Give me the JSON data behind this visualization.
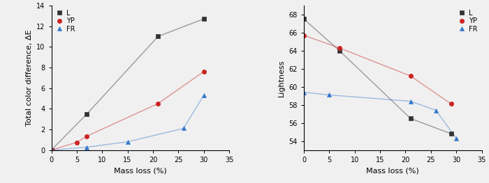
{
  "left": {
    "xlabel": "Mass loss (%)",
    "ylabel": "Total color difference, ΔE",
    "xlim": [
      0,
      35
    ],
    "ylim": [
      0,
      14
    ],
    "xticks": [
      0,
      5,
      10,
      15,
      20,
      25,
      30,
      35
    ],
    "yticks": [
      0,
      2,
      4,
      6,
      8,
      10,
      12,
      14
    ],
    "series": {
      "L": {
        "x": [
          0,
          7,
          21,
          30
        ],
        "y": [
          0,
          3.5,
          11.0,
          12.7
        ],
        "color": "#333333",
        "marker": "s",
        "label": "L"
      },
      "YP": {
        "x": [
          0,
          5,
          7,
          21,
          30
        ],
        "y": [
          0,
          0.75,
          1.35,
          4.5,
          7.6
        ],
        "color": "#cc2222",
        "marker": "o",
        "label": "YP"
      },
      "FR": {
        "x": [
          0,
          7,
          15,
          26,
          30
        ],
        "y": [
          0,
          0.28,
          0.8,
          2.1,
          5.3
        ],
        "color": "#3377cc",
        "marker": "^",
        "label": "FR"
      }
    }
  },
  "right": {
    "xlabel": "Mass loss (%)",
    "ylabel": "Lightness",
    "xlim": [
      0,
      35
    ],
    "ylim": [
      53,
      69
    ],
    "xticks": [
      0,
      5,
      10,
      15,
      20,
      25,
      30,
      35
    ],
    "yticks": [
      54,
      56,
      58,
      60,
      62,
      64,
      66,
      68
    ],
    "series": {
      "L": {
        "x": [
          0,
          7,
          21,
          29
        ],
        "y": [
          67.5,
          64.0,
          56.5,
          54.8
        ],
        "color": "#333333",
        "marker": "s",
        "label": "L"
      },
      "YP": {
        "x": [
          0,
          7,
          21,
          29
        ],
        "y": [
          65.7,
          64.3,
          61.2,
          58.1
        ],
        "color": "#cc2222",
        "marker": "o",
        "label": "YP"
      },
      "FR": {
        "x": [
          0,
          5,
          21,
          26,
          30
        ],
        "y": [
          59.4,
          59.1,
          58.4,
          57.4,
          54.3
        ],
        "color": "#3377cc",
        "marker": "^",
        "label": "FR"
      }
    }
  },
  "line_alpha": 0.45,
  "marker_size": 4.5,
  "linewidth": 1.0,
  "legend_fontsize": 7.0,
  "tick_fontsize": 7.0,
  "label_fontsize": 8.0,
  "bg_color": "#f0f0f0"
}
